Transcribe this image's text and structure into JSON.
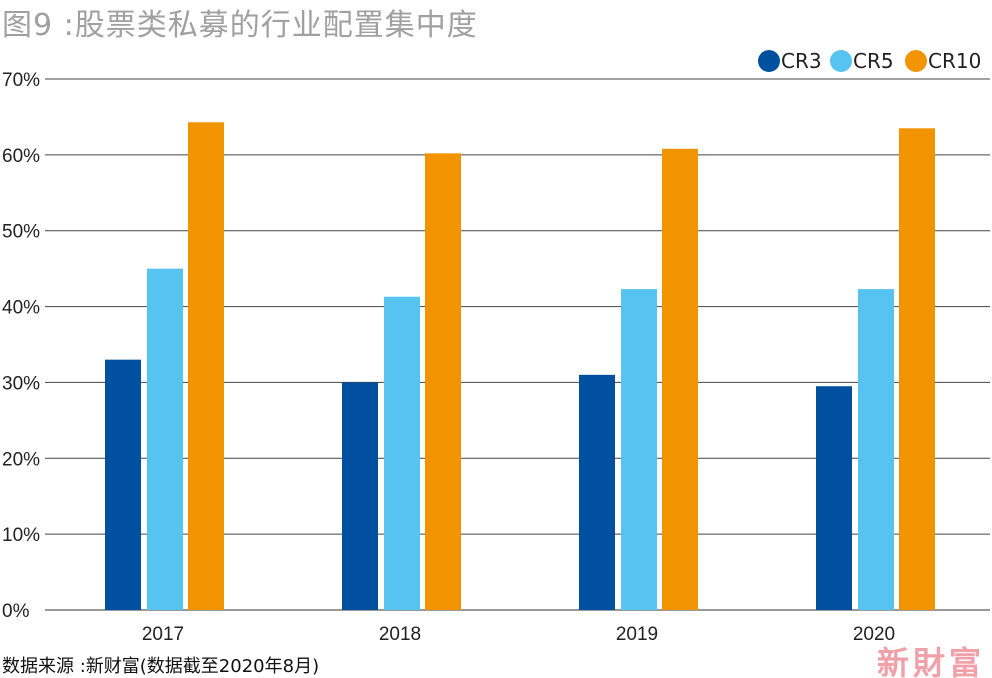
{
  "title": "图9 :股票类私募的行业配置集中度",
  "source": "数据来源 :新财富(数据截至2020年8月)",
  "watermark": "新財富",
  "chart_data": {
    "type": "bar",
    "title": "图9 :股票类私募的行业配置集中度",
    "xlabel": "",
    "ylabel": "",
    "categories": [
      "2017",
      "2018",
      "2019",
      "2020"
    ],
    "series": [
      {
        "name": "CR3",
        "color": "#0050a0",
        "values": [
          33.0,
          30.0,
          31.0,
          29.5
        ]
      },
      {
        "name": "CR5",
        "color": "#56c3f0",
        "values": [
          45.0,
          41.3,
          42.3,
          42.3
        ]
      },
      {
        "name": "CR10",
        "color": "#f29400",
        "values": [
          64.3,
          60.2,
          60.8,
          63.5
        ]
      }
    ],
    "ylim": [
      0,
      70
    ],
    "yticks": [
      "0%",
      "10%",
      "20%",
      "30%",
      "40%",
      "50%",
      "60%",
      "70%"
    ],
    "grid": true,
    "legend": "top-right"
  }
}
